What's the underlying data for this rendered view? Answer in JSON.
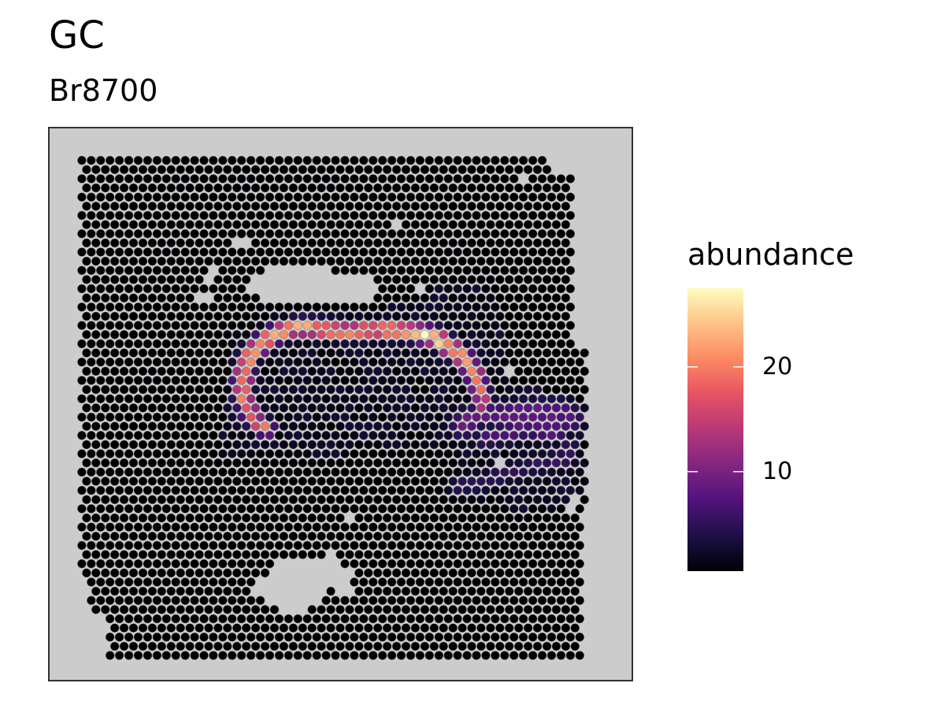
{
  "chart_data": {
    "type": "scatter",
    "title": "GC",
    "subtitle": "Br8700",
    "xlabel": "",
    "ylabel": "",
    "grid": false,
    "panel_background": "#cccccc",
    "point_outline": "#6b6b6b",
    "legend": {
      "title": "abundance",
      "placement": "right",
      "range": [
        0.5,
        27.5
      ],
      "ticks": [
        10,
        20
      ],
      "tick_labels": [
        "10",
        "20"
      ],
      "palette": "magma",
      "colors": [
        "#000004",
        "#1d1147",
        "#51127c",
        "#822681",
        "#b73779",
        "#e75263",
        "#fc8961",
        "#fec287",
        "#fcfdbf"
      ]
    },
    "grid_spec": {
      "x_range": [
        0,
        57
      ],
      "y_range": [
        0,
        55
      ],
      "baseline_abundance": 0.5
    },
    "tissue_boundary": [
      [
        1,
        54.5
      ],
      [
        51,
        54.5
      ],
      [
        51,
        53
      ],
      [
        53.5,
        52.2
      ],
      [
        53.5,
        34
      ],
      [
        55,
        34
      ],
      [
        55,
        17
      ],
      [
        54.5,
        17
      ],
      [
        54.5,
        0
      ],
      [
        4,
        0
      ],
      [
        4,
        3
      ],
      [
        2,
        5.5
      ],
      [
        1,
        9
      ]
    ],
    "holes": [
      [
        [
          18,
          40.5
        ],
        [
          21,
          42
        ],
        [
          26,
          42.2
        ],
        [
          29.5,
          41.5
        ],
        [
          33,
          40.7
        ],
        [
          32,
          38.5
        ],
        [
          30,
          38
        ],
        [
          24.5,
          38.5
        ],
        [
          20,
          39
        ]
      ],
      [
        [
          19,
          7
        ],
        [
          22,
          10
        ],
        [
          25,
          10.4
        ],
        [
          27.5,
          11.1
        ],
        [
          30,
          9
        ],
        [
          30,
          6.8
        ],
        [
          27,
          7.1
        ],
        [
          26,
          5.3
        ],
        [
          23,
          4
        ],
        [
          21,
          6
        ]
      ],
      [
        [
          16.5,
          45.2
        ],
        [
          17.7,
          45.6
        ],
        [
          19.5,
          45.2
        ],
        [
          18.5,
          44.6
        ]
      ],
      [
        [
          13.5,
          41.9
        ],
        [
          15.2,
          42.2
        ],
        [
          15,
          41
        ],
        [
          14,
          41
        ]
      ],
      [
        [
          12.7,
          39.4
        ],
        [
          14.8,
          39.5
        ],
        [
          14.5,
          38.7
        ],
        [
          13,
          38.7
        ]
      ],
      [
        [
          24.5,
          45.6
        ],
        [
          25.5,
          45.2
        ],
        [
          25,
          44.5
        ]
      ],
      [
        [
          34,
          47.5
        ],
        [
          35,
          47.5
        ],
        [
          34.5,
          46.8
        ]
      ],
      [
        [
          47.2,
          52.3
        ],
        [
          48.2,
          52.2
        ],
        [
          47.7,
          51.6
        ]
      ],
      [
        [
          36.2,
          40.2
        ],
        [
          37.2,
          40.2
        ],
        [
          36.7,
          39.6
        ]
      ],
      [
        [
          30.5,
          33.5
        ],
        [
          31.5,
          33.5
        ],
        [
          31,
          32.8
        ]
      ],
      [
        [
          46,
          31.1
        ],
        [
          47,
          31.2
        ],
        [
          46.5,
          30.4
        ]
      ],
      [
        [
          45,
          21.5
        ],
        [
          46,
          21.5
        ],
        [
          45.5,
          20.8
        ]
      ],
      [
        [
          29,
          15.5
        ],
        [
          30,
          15.5
        ],
        [
          29.5,
          14.8
        ]
      ],
      [
        [
          52.8,
          17.5
        ],
        [
          54.5,
          16.5
        ],
        [
          53,
          15.7
        ]
      ]
    ],
    "hot_paths": [
      {
        "points": [
          [
            20.5,
            24.8
          ],
          [
            19.5,
            25.6
          ],
          [
            18.7,
            26.8
          ],
          [
            18.2,
            28.3
          ],
          [
            18.1,
            29.8
          ],
          [
            18.3,
            31.2
          ],
          [
            18.8,
            32.8
          ],
          [
            20,
            33.9
          ],
          [
            21.5,
            35
          ],
          [
            23.5,
            35.7
          ],
          [
            26,
            35.7
          ],
          [
            28.5,
            35.4
          ],
          [
            31,
            35.4
          ],
          [
            33.5,
            35.5
          ],
          [
            36,
            35.3
          ],
          [
            38.5,
            34.7
          ],
          [
            40.5,
            33.4
          ],
          [
            42,
            31.9
          ],
          [
            43,
            30.3
          ],
          [
            43.6,
            28.3
          ],
          [
            43.4,
            27.2
          ]
        ],
        "profile": [
          [
            0,
            18
          ],
          [
            0.1,
            21
          ],
          [
            0.25,
            25
          ],
          [
            0.45,
            23
          ],
          [
            0.6,
            22
          ],
          [
            0.75,
            27
          ],
          [
            0.85,
            25
          ],
          [
            0.95,
            18
          ],
          [
            1,
            14
          ]
        ],
        "width": 0.7
      },
      {
        "points": [
          [
            41.5,
            25.2
          ],
          [
            43.5,
            26.5
          ],
          [
            46.5,
            26.3
          ],
          [
            49.5,
            26.6
          ],
          [
            52,
            26.6
          ],
          [
            53,
            25.8
          ],
          [
            51,
            24.6
          ],
          [
            48.5,
            24.9
          ],
          [
            46,
            24.3
          ],
          [
            44,
            23.8
          ]
        ],
        "profile": [
          [
            0,
            9
          ],
          [
            0.5,
            9
          ],
          [
            1,
            7
          ]
        ],
        "width": 1.1
      },
      {
        "points": [
          [
            41,
            18.5
          ],
          [
            43,
            18.6
          ],
          [
            45,
            19.4
          ],
          [
            47.5,
            20.2
          ],
          [
            50,
            20.9
          ],
          [
            52.5,
            21.5
          ],
          [
            52.7,
            22.8
          ]
        ],
        "profile": [
          [
            0,
            5
          ],
          [
            0.5,
            5
          ],
          [
            1,
            6
          ]
        ],
        "width": 0.9
      }
    ],
    "warm_zones": [
      {
        "polygon": [
          [
            15.5,
            21
          ],
          [
            17,
            35
          ],
          [
            21,
            37.2
          ],
          [
            26,
            38
          ],
          [
            32,
            37.8
          ],
          [
            36,
            38.5
          ],
          [
            39,
            40.5
          ],
          [
            44,
            40.5
          ],
          [
            46,
            36
          ],
          [
            47,
            30
          ],
          [
            54,
            28
          ],
          [
            55,
            18
          ],
          [
            51,
            15.5
          ],
          [
            43,
            16.5
          ],
          [
            41,
            21.5
          ],
          [
            36,
            22.5
          ],
          [
            30,
            22
          ],
          [
            24,
            22
          ],
          [
            21,
            22.5
          ]
        ],
        "value": 2.5
      }
    ]
  }
}
